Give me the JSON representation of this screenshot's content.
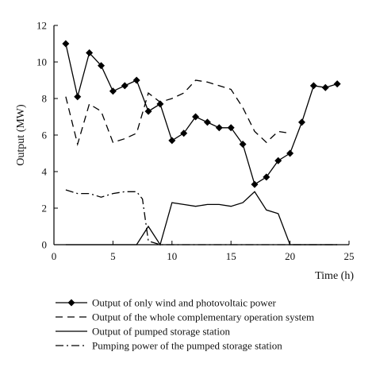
{
  "chart_data": {
    "type": "line",
    "xlabel": "Time (h)",
    "ylabel": "Output (MW)",
    "xlim": [
      0,
      25
    ],
    "ylim": [
      0,
      12
    ],
    "xticks": [
      0,
      5,
      10,
      15,
      20,
      25
    ],
    "yticks": [
      0,
      2,
      4,
      6,
      8,
      10,
      12
    ],
    "grid": false,
    "legend_position": "bottom",
    "series": [
      {
        "name": "Output of only wind and photovoltaic power",
        "style": "solid-diamond",
        "color": "#000000",
        "x": [
          1,
          2,
          3,
          4,
          5,
          6,
          7,
          8,
          9,
          10,
          11,
          12,
          13,
          14,
          15,
          16,
          17,
          18,
          19,
          20,
          21,
          22,
          23,
          24
        ],
        "values": [
          11.0,
          8.1,
          10.5,
          9.8,
          8.4,
          8.7,
          9.0,
          7.3,
          7.7,
          5.7,
          6.1,
          7.0,
          6.7,
          6.4,
          6.4,
          5.5,
          3.3,
          3.7,
          4.6,
          5.0,
          6.7,
          8.7,
          8.6,
          8.8
        ]
      },
      {
        "name": "Output of the whole complementary operation system",
        "style": "dashed",
        "color": "#000000",
        "x": [
          1,
          2,
          3,
          4,
          5,
          6,
          7,
          8,
          9,
          10,
          11,
          12,
          13,
          14,
          15,
          16,
          17,
          18,
          19,
          20
        ],
        "values": [
          8.1,
          5.5,
          7.7,
          7.3,
          5.6,
          5.8,
          6.1,
          8.3,
          7.8,
          8.0,
          8.3,
          9.0,
          8.9,
          8.7,
          8.5,
          7.5,
          6.2,
          5.6,
          6.2,
          6.1
        ]
      },
      {
        "name": "Output of pumped storage station",
        "style": "solid",
        "color": "#000000",
        "x": [
          1,
          7,
          8,
          9,
          10,
          11,
          12,
          13,
          14,
          15,
          16,
          17,
          18,
          19,
          20,
          24
        ],
        "values": [
          0,
          0,
          1.0,
          0,
          2.3,
          2.2,
          2.1,
          2.2,
          2.2,
          2.1,
          2.3,
          2.9,
          1.9,
          1.7,
          0,
          0
        ]
      },
      {
        "name": "Pumping power of the pumped storage station",
        "style": "dashdot",
        "color": "#000000",
        "x": [
          1,
          2,
          3,
          4,
          5,
          6,
          7,
          7.5,
          8,
          9,
          10,
          24
        ],
        "values": [
          3.0,
          2.8,
          2.8,
          2.6,
          2.8,
          2.9,
          2.9,
          2.5,
          0.2,
          0,
          0,
          0
        ]
      }
    ]
  }
}
